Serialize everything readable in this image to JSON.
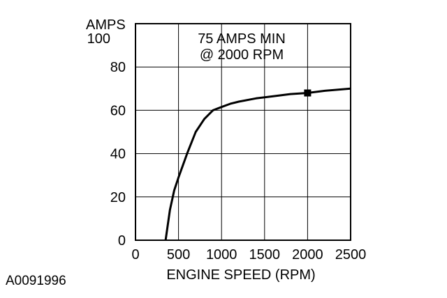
{
  "chart_data": {
    "type": "line",
    "title": "",
    "xlabel": "ENGINE SPEED (RPM)",
    "ylabel": "AMPS",
    "xlim": [
      0,
      2500
    ],
    "ylim": [
      0,
      100
    ],
    "x_ticks": [
      "0",
      "500",
      "1000",
      "1500",
      "2000",
      "2500"
    ],
    "y_ticks": [
      "0",
      "20",
      "40",
      "60",
      "80",
      "100"
    ],
    "grid": true,
    "series": [
      {
        "x": [
          350,
          400,
          450,
          500,
          600,
          700,
          800,
          900,
          1000,
          1100,
          1200,
          1400,
          1600,
          1800,
          2000,
          2200,
          2500
        ],
        "y": [
          0,
          14,
          23,
          29,
          40,
          50,
          56,
          60,
          61.5,
          63,
          64,
          65.5,
          66.5,
          67.5,
          68,
          69,
          70
        ]
      }
    ],
    "marker": {
      "x": 2000,
      "y": 68
    },
    "annotation": [
      "75 AMPS MIN",
      "@ 2000 RPM"
    ],
    "figure_id": "A0091996"
  }
}
